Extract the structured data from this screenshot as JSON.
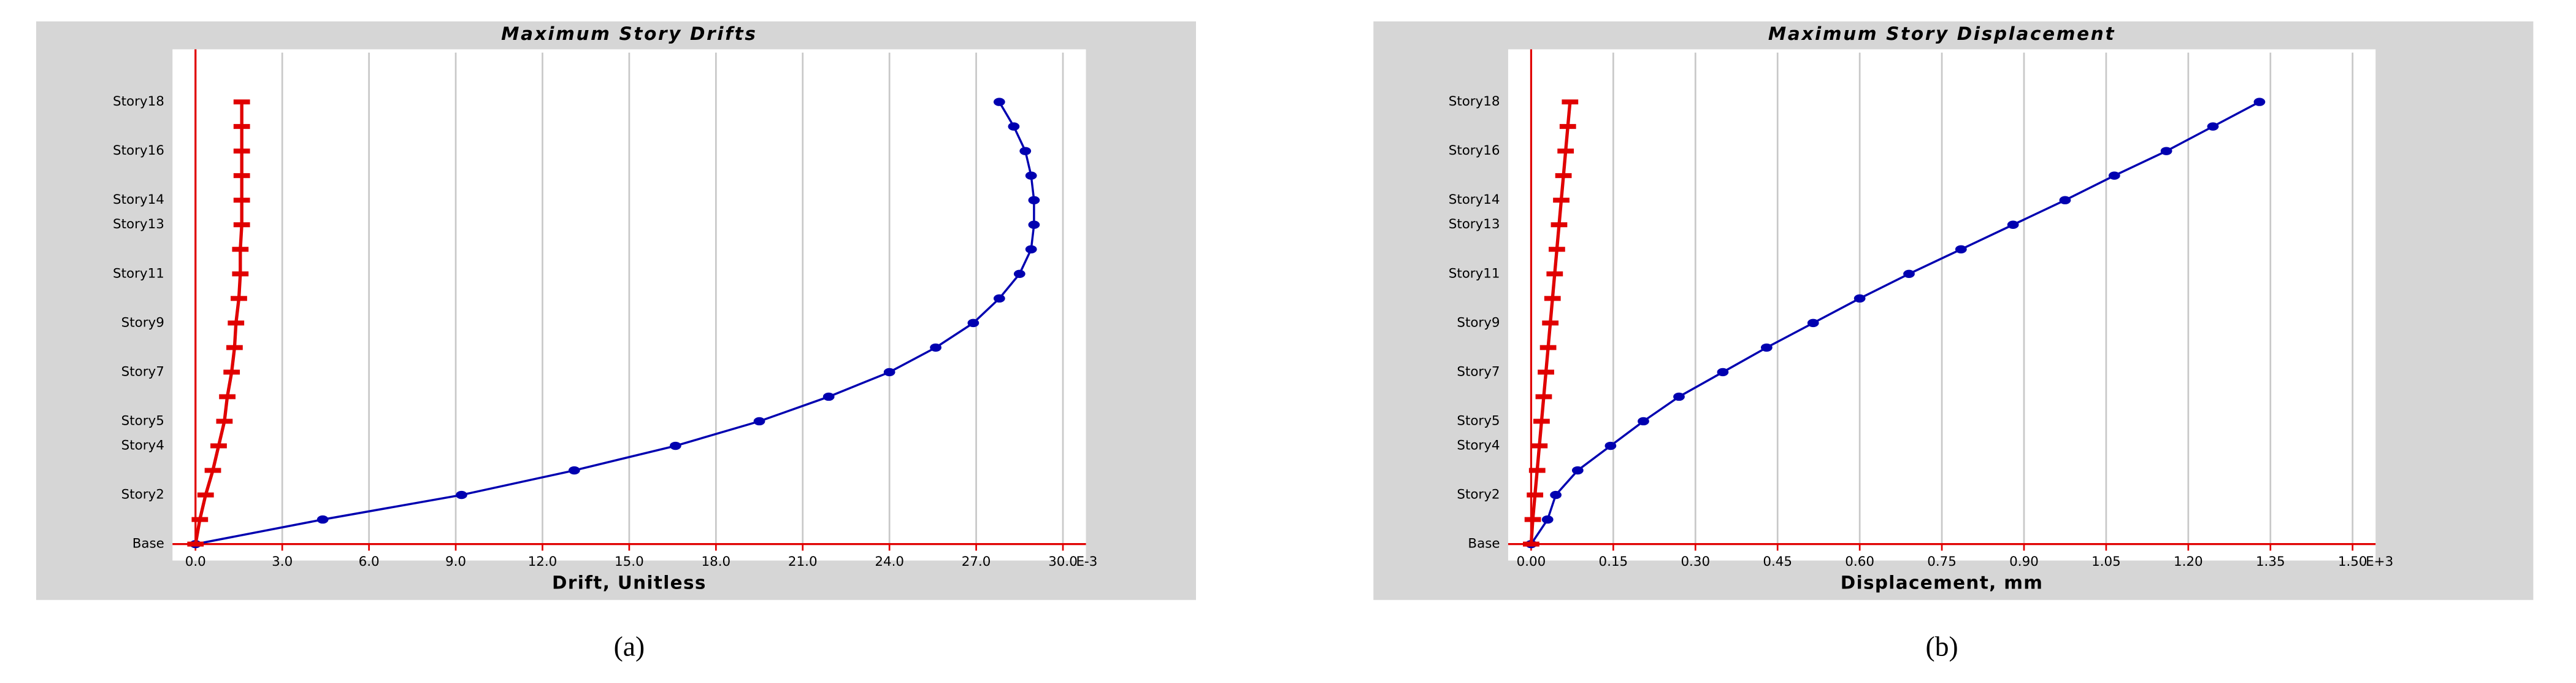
{
  "chart_data": [
    {
      "type": "line",
      "title": "Maximum Story Drifts",
      "xlabel": "Drift, Unitless",
      "x_multiplier": "E-3",
      "caption": "(a)",
      "categories": [
        "Base",
        null,
        "Story2",
        null,
        "Story4",
        "Story5",
        null,
        "Story7",
        null,
        "Story9",
        null,
        "Story11",
        null,
        "Story13",
        "Story14",
        null,
        "Story16",
        null,
        "Story18"
      ],
      "series": [
        {
          "color": "#0000b0",
          "marker": "dot",
          "values": [
            0,
            4.4,
            9.2,
            13.1,
            16.6,
            19.5,
            21.9,
            24.0,
            25.6,
            26.9,
            27.8,
            28.5,
            28.9,
            29.0,
            29.0,
            28.9,
            28.7,
            28.3,
            27.8
          ]
        },
        {
          "color": "#e00000",
          "marker": "dash",
          "values": [
            0,
            0.15,
            0.35,
            0.6,
            0.8,
            1.0,
            1.1,
            1.25,
            1.35,
            1.4,
            1.5,
            1.55,
            1.55,
            1.6,
            1.6,
            1.6,
            1.6,
            1.6,
            1.6
          ]
        }
      ],
      "xlim": [
        0,
        30
      ],
      "xticks": [
        {
          "value": 0,
          "label": "0.0"
        },
        {
          "value": 3,
          "label": "3.0"
        },
        {
          "value": 6,
          "label": "6.0"
        },
        {
          "value": 9,
          "label": "9.0"
        },
        {
          "value": 12,
          "label": "12.0"
        },
        {
          "value": 15,
          "label": "15.0"
        },
        {
          "value": 18,
          "label": "18.0"
        },
        {
          "value": 21,
          "label": "21.0"
        },
        {
          "value": 24,
          "label": "24.0"
        },
        {
          "value": 27,
          "label": "27.0"
        },
        {
          "value": 30,
          "label": "30.0"
        }
      ],
      "grid": true
    },
    {
      "type": "line",
      "title": "Maximum Story Displacement",
      "xlabel": "Displacement, mm",
      "x_multiplier": "E+3",
      "caption": "(b)",
      "categories": [
        "Base",
        null,
        "Story2",
        null,
        "Story4",
        "Story5",
        null,
        "Story7",
        null,
        "Story9",
        null,
        "Story11",
        null,
        "Story13",
        "Story14",
        null,
        "Story16",
        null,
        "Story18"
      ],
      "series": [
        {
          "color": "#0000b0",
          "marker": "dot",
          "values": [
            0,
            0.03,
            0.045,
            0.085,
            0.145,
            0.205,
            0.27,
            0.35,
            0.43,
            0.515,
            0.6,
            0.69,
            0.785,
            0.88,
            0.975,
            1.065,
            1.16,
            1.245,
            1.33
          ]
        },
        {
          "color": "#e00000",
          "marker": "dash",
          "values": [
            0,
            0.003,
            0.007,
            0.011,
            0.015,
            0.019,
            0.023,
            0.027,
            0.031,
            0.035,
            0.039,
            0.043,
            0.047,
            0.051,
            0.055,
            0.059,
            0.063,
            0.067,
            0.071
          ]
        }
      ],
      "xlim": [
        0,
        1.5
      ],
      "xticks": [
        {
          "value": 0,
          "label": "0.00"
        },
        0.15,
        {
          "value": 0.3,
          "label": "0.30"
        },
        0.45,
        {
          "value": 0.6,
          "label": "0.60"
        },
        0.75,
        {
          "value": 0.9,
          "label": "0.90"
        },
        1.05,
        {
          "value": 1.2,
          "label": "1.20"
        },
        1.35,
        {
          "value": 1.5,
          "label": "1.50"
        }
      ],
      "grid": true
    }
  ]
}
